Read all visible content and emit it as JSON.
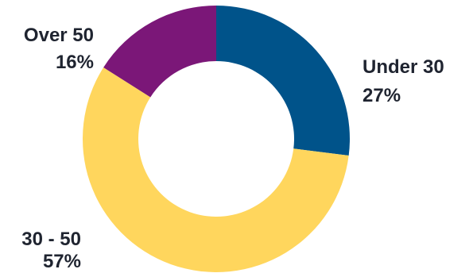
{
  "chart_data": {
    "type": "pie",
    "style": "donut",
    "slices": [
      {
        "label": "Under 30",
        "value": 27,
        "value_text": "27%",
        "color": "#00538a"
      },
      {
        "label": "30 - 50",
        "value": 57,
        "value_text": "57%",
        "color": "#ffd65d"
      },
      {
        "label": "Over 50",
        "value": 16,
        "value_text": "16%",
        "color": "#7b1778"
      }
    ]
  }
}
